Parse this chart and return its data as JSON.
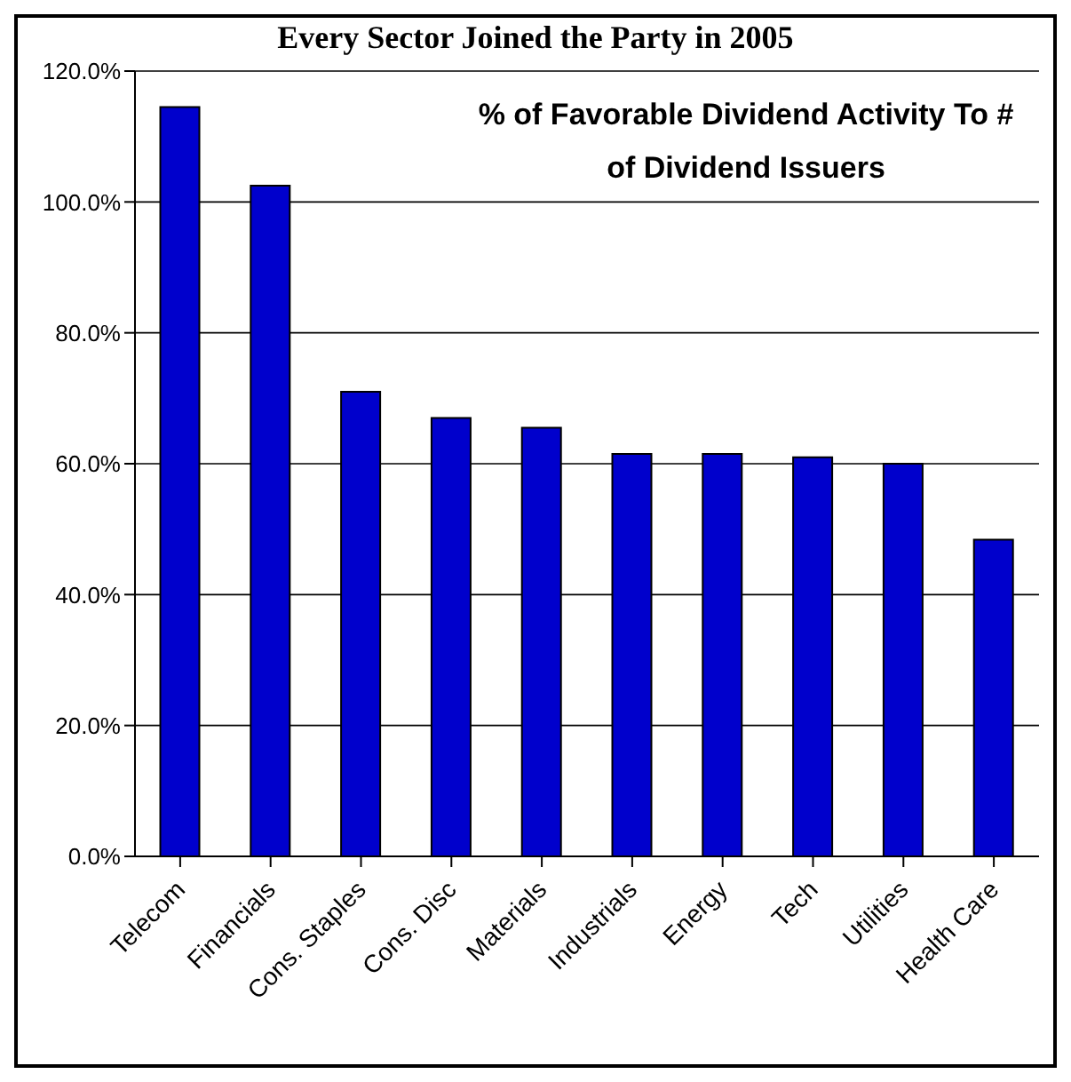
{
  "chart_data": {
    "type": "bar",
    "title": "Every Sector Joined the Party in 2005",
    "subtitle": "% of Favorable Dividend Activity To # of Dividend Issuers",
    "categories": [
      "Telecom",
      "Financials",
      "Cons. Staples",
      "Cons. Disc",
      "Materials",
      "Industrials",
      "Energy",
      "Tech",
      "Utilities",
      "Health Care"
    ],
    "values": [
      114.5,
      102.5,
      71,
      67,
      65.5,
      61.5,
      61.5,
      61,
      60,
      48.4
    ],
    "color": "#0000cc",
    "ylim": [
      0,
      120
    ],
    "yticks": [
      {
        "value": 0,
        "label": "0.0%"
      },
      {
        "value": 20,
        "label": "20.0%"
      },
      {
        "value": 40,
        "label": "40.0%"
      },
      {
        "value": 60,
        "label": "60.0%"
      },
      {
        "value": 80,
        "label": "80.0%"
      },
      {
        "value": 100,
        "label": "100.0%"
      },
      {
        "value": 120,
        "label": "120.0%"
      }
    ],
    "grid": "y"
  }
}
